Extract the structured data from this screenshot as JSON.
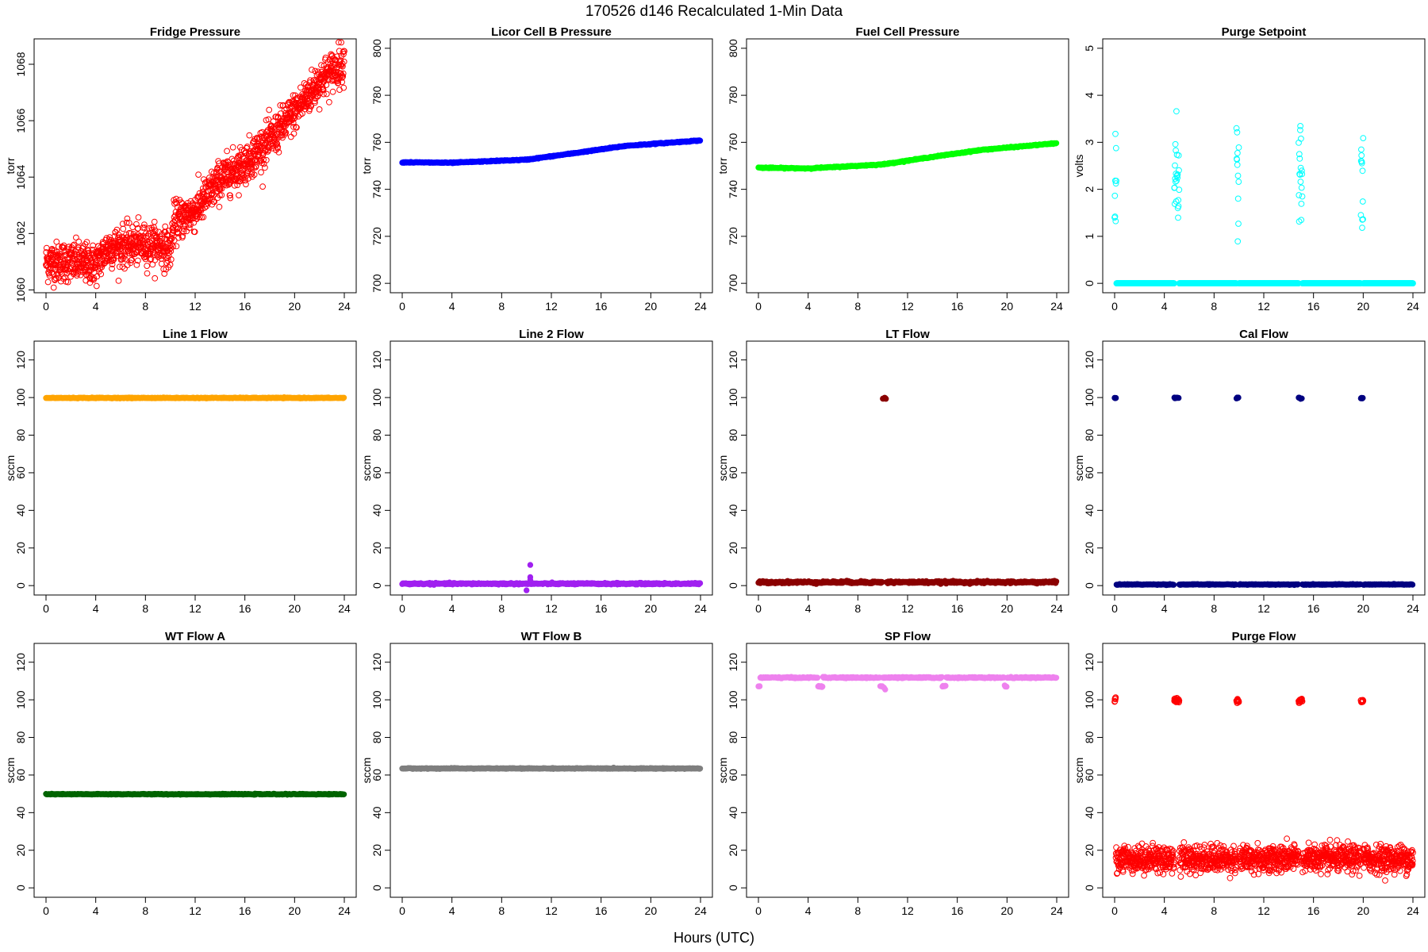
{
  "header": {
    "title": "170526   d146   Recalculated 1-Min Data"
  },
  "footer": {
    "xlabel": "Hours (UTC)"
  },
  "chart_data": [
    {
      "type": "scatter",
      "title": "Fridge Pressure",
      "ylabel": "torr",
      "xlim": [
        0,
        24
      ],
      "ylim": [
        1059.9,
        1068.9
      ],
      "xticks": [
        0,
        4,
        8,
        12,
        16,
        20,
        24
      ],
      "yticks": [
        1060,
        1062,
        1064,
        1066,
        1068
      ],
      "color": "#ff0000",
      "marker": "open",
      "series": [
        {
          "trend": [
            [
              0,
              1061.0
            ],
            [
              2,
              1061.0
            ],
            [
              4,
              1060.9
            ],
            [
              5,
              1061.5
            ],
            [
              7,
              1061.6
            ],
            [
              9,
              1061.6
            ],
            [
              10,
              1061.4
            ],
            [
              10.3,
              1062.4
            ],
            [
              12,
              1062.8
            ],
            [
              14,
              1063.9
            ],
            [
              16,
              1064.5
            ],
            [
              18,
              1065.3
            ],
            [
              20,
              1066.3
            ],
            [
              22,
              1067.4
            ],
            [
              24,
              1068.1
            ]
          ],
          "noise": 0.35,
          "n": 1440
        }
      ]
    },
    {
      "type": "scatter",
      "title": "Licor Cell B Pressure",
      "ylabel": "torr",
      "xlim": [
        0,
        24
      ],
      "ylim": [
        696,
        804
      ],
      "xticks": [
        0,
        4,
        8,
        12,
        16,
        20,
        24
      ],
      "yticks": [
        700,
        720,
        740,
        760,
        780,
        800
      ],
      "color": "#0000ff",
      "marker": "filled",
      "series": [
        {
          "trend": [
            [
              0,
              751.5
            ],
            [
              4,
              751.3
            ],
            [
              8,
              752.2
            ],
            [
              10,
              752.6
            ],
            [
              14,
              755.5
            ],
            [
              18,
              758.5
            ],
            [
              24,
              760.8
            ]
          ],
          "noise": 0.1,
          "n": 1440
        }
      ]
    },
    {
      "type": "scatter",
      "title": "Fuel Cell Pressure",
      "ylabel": "torr",
      "xlim": [
        0,
        24
      ],
      "ylim": [
        696,
        804
      ],
      "xticks": [
        0,
        4,
        8,
        12,
        16,
        20,
        24
      ],
      "yticks": [
        700,
        720,
        740,
        760,
        780,
        800
      ],
      "color": "#00ff00",
      "marker": "filled",
      "series": [
        {
          "trend": [
            [
              0,
              749.2
            ],
            [
              4,
              748.9
            ],
            [
              8,
              750.0
            ],
            [
              10,
              750.6
            ],
            [
              14,
              753.8
            ],
            [
              18,
              756.8
            ],
            [
              24,
              759.6
            ]
          ],
          "noise": 0.1,
          "n": 1440
        }
      ]
    },
    {
      "type": "scatter",
      "title": "Purge Setpoint",
      "ylabel": "volts",
      "xlim": [
        0,
        24
      ],
      "ylim": [
        -0.2,
        5.2
      ],
      "xticks": [
        0,
        4,
        8,
        12,
        16,
        20,
        24
      ],
      "yticks": [
        0,
        1,
        2,
        3,
        4,
        5
      ],
      "color": "#00ffff",
      "marker": "open",
      "series": [
        {
          "baseline": 0.0,
          "noise": 0.0,
          "n": 1440,
          "clusters": [
            {
              "x": [
                0,
                0.15
              ],
              "y": 2.3
            },
            {
              "x": [
                4.8,
                5.2
              ],
              "y": 2.3
            },
            {
              "x": [
                9.8,
                10.0
              ],
              "y": 2.3
            },
            {
              "x": [
                14.8,
                15.1
              ],
              "y": 2.3
            },
            {
              "x": [
                19.8,
                20.0
              ],
              "y": 2.3
            }
          ]
        }
      ]
    },
    {
      "type": "scatter",
      "title": "Line 1 Flow",
      "ylabel": "sccm",
      "xlim": [
        0,
        24
      ],
      "ylim": [
        -5,
        130
      ],
      "xticks": [
        0,
        4,
        8,
        12,
        16,
        20,
        24
      ],
      "yticks": [
        0,
        20,
        40,
        60,
        80,
        100,
        120
      ],
      "color": "#ffa500",
      "marker": "filled",
      "series": [
        {
          "baseline": 99.8,
          "noise": 0.1,
          "n": 1440
        }
      ]
    },
    {
      "type": "scatter",
      "title": "Line 2 Flow",
      "ylabel": "sccm",
      "xlim": [
        0,
        24
      ],
      "ylim": [
        -5,
        130
      ],
      "xticks": [
        0,
        4,
        8,
        12,
        16,
        20,
        24
      ],
      "yticks": [
        0,
        20,
        40,
        60,
        80,
        100,
        120
      ],
      "color": "#a020f0",
      "marker": "filled",
      "series": [
        {
          "baseline": 1.0,
          "noise": 0.2,
          "n": 1440,
          "outliers": [
            [
              10.3,
              11.0
            ],
            [
              10.3,
              4.5
            ],
            [
              10.3,
              3.0
            ],
            [
              10.0,
              -2.5
            ]
          ]
        }
      ]
    },
    {
      "type": "scatter",
      "title": "LT Flow",
      "ylabel": "sccm",
      "xlim": [
        0,
        24
      ],
      "ylim": [
        -5,
        130
      ],
      "xticks": [
        0,
        4,
        8,
        12,
        16,
        20,
        24
      ],
      "yticks": [
        0,
        20,
        40,
        60,
        80,
        100,
        120
      ],
      "color": "#8b0000",
      "marker": "filled",
      "series": [
        {
          "baseline": 1.8,
          "noise": 0.3,
          "n": 1440,
          "clusters": [
            {
              "x": [
                10.0,
                10.3
              ],
              "y": 99.6
            }
          ]
        }
      ]
    },
    {
      "type": "scatter",
      "title": "Cal Flow",
      "ylabel": "sccm",
      "xlim": [
        0,
        24
      ],
      "ylim": [
        -5,
        130
      ],
      "xticks": [
        0,
        4,
        8,
        12,
        16,
        20,
        24
      ],
      "yticks": [
        0,
        20,
        40,
        60,
        80,
        100,
        120
      ],
      "color": "#000080",
      "marker": "filled",
      "series": [
        {
          "baseline": 0.6,
          "noise": 0.1,
          "n": 1440,
          "clusters": [
            {
              "x": [
                0,
                0.15
              ],
              "y": 99.8
            },
            {
              "x": [
                4.8,
                5.2
              ],
              "y": 99.8
            },
            {
              "x": [
                9.8,
                10.0
              ],
              "y": 99.8
            },
            {
              "x": [
                14.8,
                15.1
              ],
              "y": 99.8
            },
            {
              "x": [
                19.8,
                20.0
              ],
              "y": 99.8
            }
          ]
        }
      ]
    },
    {
      "type": "scatter",
      "title": "WT Flow A",
      "ylabel": "sccm",
      "xlim": [
        0,
        24
      ],
      "ylim": [
        -5,
        130
      ],
      "xticks": [
        0,
        4,
        8,
        12,
        16,
        20,
        24
      ],
      "yticks": [
        0,
        20,
        40,
        60,
        80,
        100,
        120
      ],
      "color": "#006400",
      "marker": "filled",
      "series": [
        {
          "baseline": 49.8,
          "noise": 0.1,
          "n": 1440
        }
      ]
    },
    {
      "type": "scatter",
      "title": "WT Flow B",
      "ylabel": "sccm",
      "xlim": [
        0,
        24
      ],
      "ylim": [
        -5,
        130
      ],
      "xticks": [
        0,
        4,
        8,
        12,
        16,
        20,
        24
      ],
      "yticks": [
        0,
        20,
        40,
        60,
        80,
        100,
        120
      ],
      "color": "#7f7f7f",
      "marker": "filled",
      "series": [
        {
          "baseline": 63.5,
          "noise": 0.1,
          "n": 1440
        }
      ]
    },
    {
      "type": "scatter",
      "title": "SP Flow",
      "ylabel": "sccm",
      "xlim": [
        0,
        24
      ],
      "ylim": [
        -5,
        130
      ],
      "xticks": [
        0,
        4,
        8,
        12,
        16,
        20,
        24
      ],
      "yticks": [
        0,
        20,
        40,
        60,
        80,
        100,
        120
      ],
      "color": "#ee82ee",
      "marker": "filled",
      "series": [
        {
          "baseline": 111.8,
          "noise": 0.15,
          "n": 1440,
          "clusters": [
            {
              "x": [
                0,
                0.15
              ],
              "y": 107.2
            },
            {
              "x": [
                4.8,
                5.2
              ],
              "y": 107.2
            },
            {
              "x": [
                9.8,
                10.0
              ],
              "y": 107.2
            },
            {
              "x": [
                14.8,
                15.1
              ],
              "y": 107.2
            },
            {
              "x": [
                19.8,
                20.0
              ],
              "y": 107.2
            }
          ],
          "outliers": [
            [
              10.2,
              105.5
            ],
            [
              10.1,
              106.5
            ]
          ]
        }
      ]
    },
    {
      "type": "scatter",
      "title": "Purge Flow",
      "ylabel": "sccm",
      "xlim": [
        0,
        24
      ],
      "ylim": [
        -5,
        130
      ],
      "xticks": [
        0,
        4,
        8,
        12,
        16,
        20,
        24
      ],
      "yticks": [
        0,
        20,
        40,
        60,
        80,
        100,
        120
      ],
      "color": "#ff0000",
      "marker": "open",
      "series": [
        {
          "baseline": 15.5,
          "noise": 3.5,
          "n": 1440,
          "clusters": [
            {
              "x": [
                0,
                0.1
              ],
              "y": 100.0
            },
            {
              "x": [
                4.8,
                5.2
              ],
              "y": 99.8
            },
            {
              "x": [
                9.8,
                10.0
              ],
              "y": 99.3
            },
            {
              "x": [
                14.8,
                15.1
              ],
              "y": 99.6
            },
            {
              "x": [
                19.8,
                20.0
              ],
              "y": 99.5
            }
          ]
        }
      ]
    }
  ]
}
